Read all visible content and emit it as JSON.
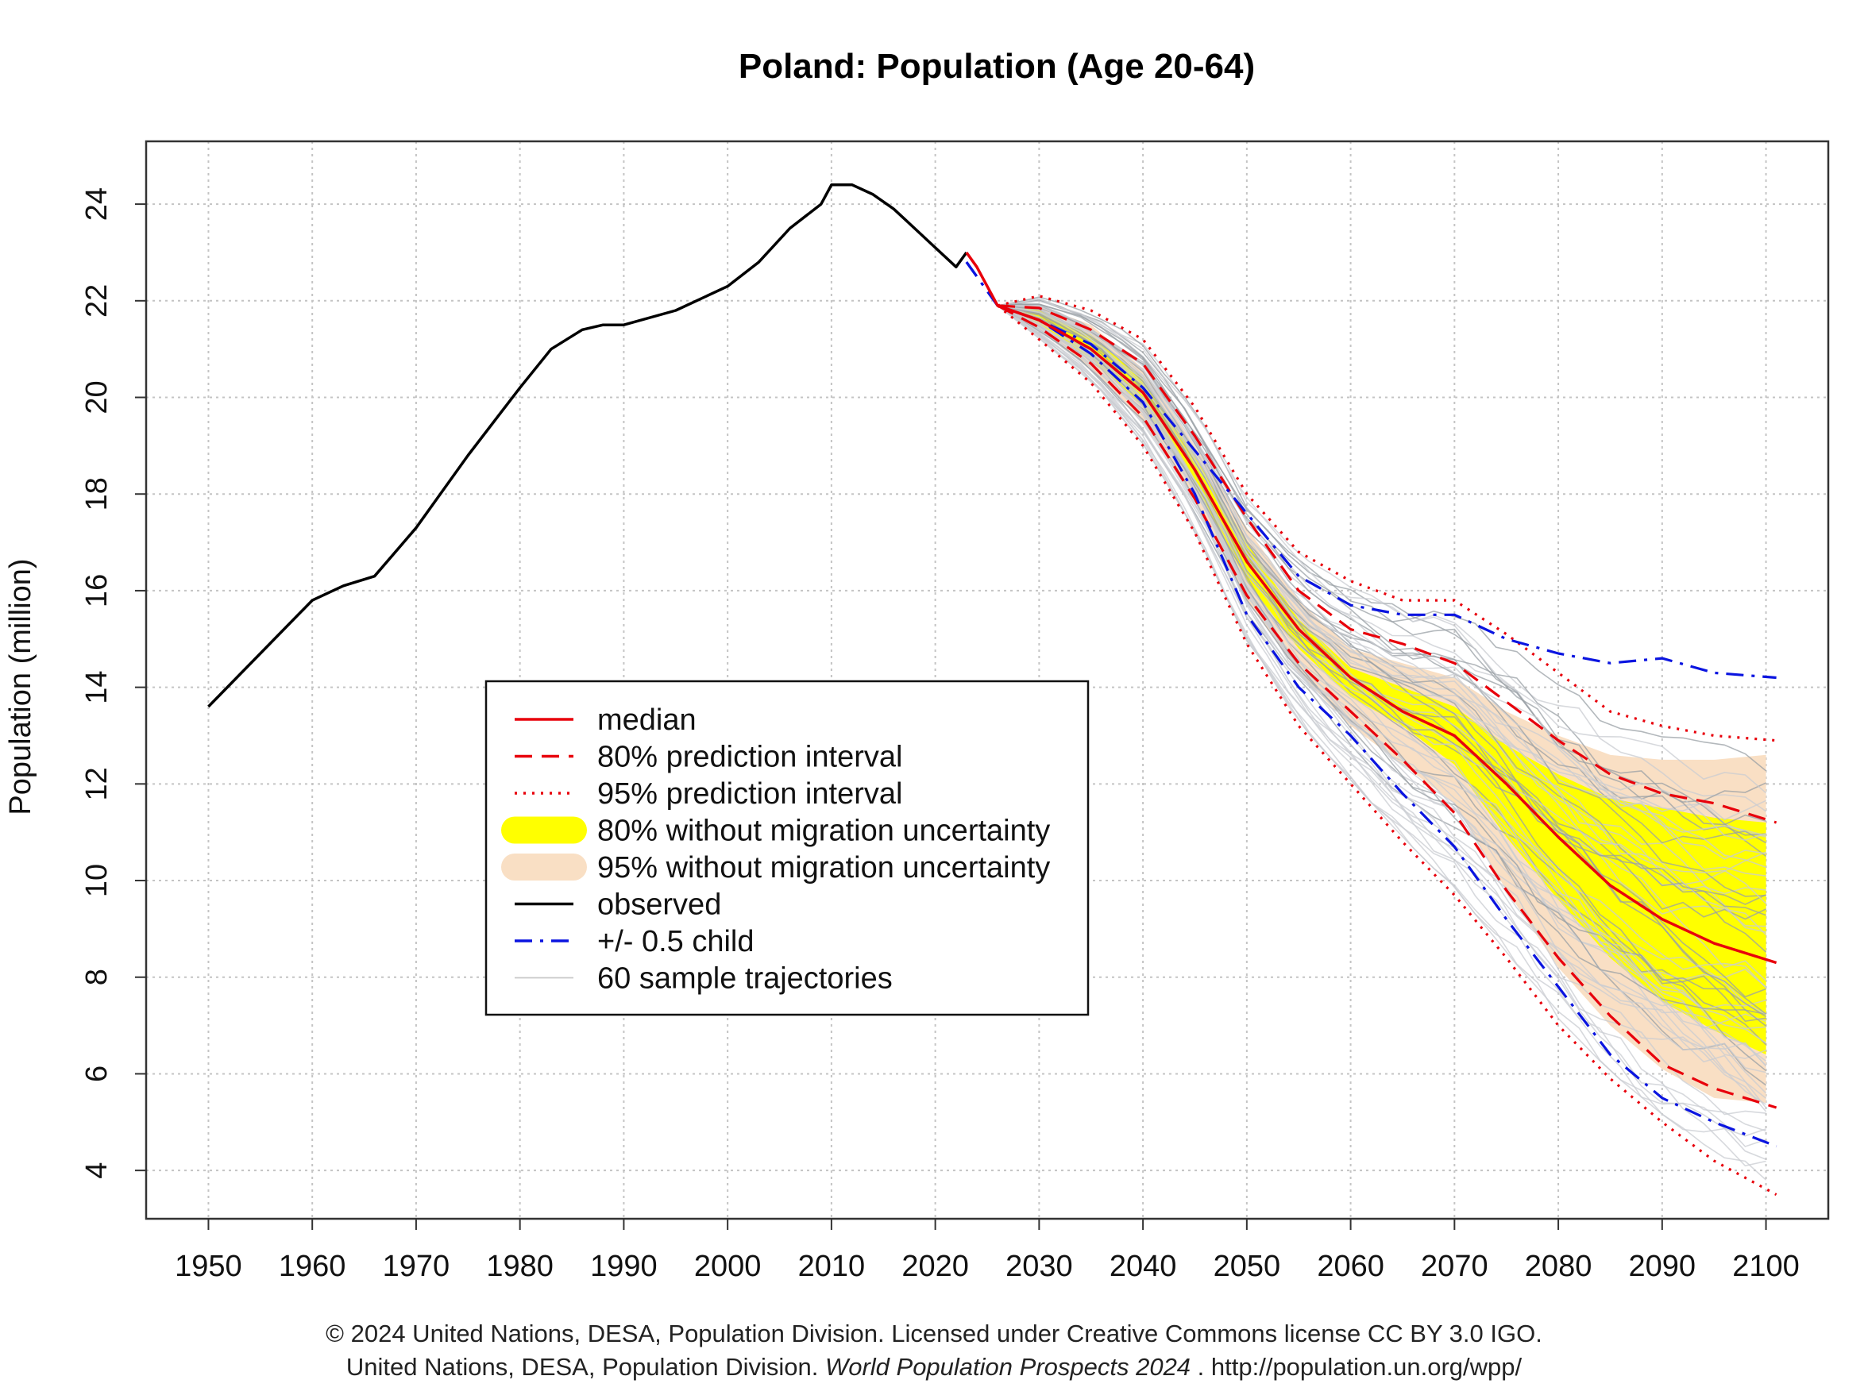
{
  "chart_data": {
    "type": "line",
    "title": "Poland: Population (Age 20-64)",
    "xlabel": "",
    "ylabel": "Population (million)",
    "xlim": [
      1944,
      2106
    ],
    "ylim": [
      3,
      25.3
    ],
    "xticks": [
      1950,
      1960,
      1970,
      1980,
      1990,
      2000,
      2010,
      2020,
      2030,
      2040,
      2050,
      2060,
      2070,
      2080,
      2090,
      2100
    ],
    "yticks": [
      4,
      6,
      8,
      10,
      12,
      14,
      16,
      18,
      20,
      22,
      24
    ],
    "grid": true,
    "legend_position": "center-left",
    "legend": [
      {
        "label": "median",
        "style": "solid",
        "color": "#e8000b"
      },
      {
        "label": "80% prediction interval",
        "style": "dashed",
        "color": "#e8000b"
      },
      {
        "label": "95% prediction interval",
        "style": "dotted",
        "color": "#e8000b"
      },
      {
        "label": "80% without migration uncertainty",
        "style": "band",
        "color": "#ffff00"
      },
      {
        "label": "95% without migration uncertainty",
        "style": "band",
        "color": "#f9dfc4"
      },
      {
        "label": "observed",
        "style": "solid",
        "color": "#000000"
      },
      {
        "label": "+/- 0.5 child",
        "style": "dashdot",
        "color": "#0a14e0"
      },
      {
        "label": "60 sample trajectories",
        "style": "thin",
        "color": "#c8c8c8"
      }
    ],
    "observed": {
      "x": [
        1950,
        1955,
        1960,
        1963,
        1966,
        1970,
        1975,
        1980,
        1983,
        1986,
        1988,
        1990,
        1995,
        2000,
        2003,
        2006,
        2009,
        2010,
        2012,
        2014,
        2016,
        2018,
        2020,
        2022,
        2023
      ],
      "y": [
        13.6,
        14.7,
        15.8,
        16.1,
        16.3,
        17.3,
        18.8,
        20.2,
        21.0,
        21.4,
        21.5,
        21.5,
        21.8,
        22.3,
        22.8,
        23.5,
        24.0,
        24.4,
        24.4,
        24.2,
        23.9,
        23.5,
        23.1,
        22.7,
        23.0
      ]
    },
    "median": {
      "x": [
        2023,
        2024,
        2026,
        2030,
        2035,
        2040,
        2045,
        2050,
        2055,
        2060,
        2065,
        2070,
        2075,
        2080,
        2085,
        2090,
        2095,
        2101
      ],
      "y": [
        23.0,
        22.7,
        21.9,
        21.6,
        21.0,
        20.1,
        18.5,
        16.6,
        15.2,
        14.2,
        13.5,
        13.0,
        12.0,
        10.9,
        9.9,
        9.2,
        8.7,
        8.3
      ]
    },
    "pi80_upper": {
      "x": [
        2026,
        2030,
        2035,
        2040,
        2045,
        2050,
        2055,
        2060,
        2065,
        2070,
        2075,
        2080,
        2085,
        2090,
        2095,
        2101
      ],
      "y": [
        21.9,
        21.85,
        21.4,
        20.7,
        19.2,
        17.5,
        16.0,
        15.2,
        14.9,
        14.5,
        13.7,
        12.9,
        12.2,
        11.8,
        11.6,
        11.2
      ]
    },
    "pi80_lower": {
      "x": [
        2026,
        2030,
        2035,
        2040,
        2045,
        2050,
        2055,
        2060,
        2065,
        2070,
        2075,
        2080,
        2085,
        2090,
        2095,
        2101
      ],
      "y": [
        21.9,
        21.45,
        20.7,
        19.6,
        17.9,
        15.9,
        14.5,
        13.5,
        12.5,
        11.4,
        9.8,
        8.4,
        7.2,
        6.2,
        5.7,
        5.3
      ]
    },
    "pi95_upper": {
      "x": [
        2026,
        2030,
        2035,
        2040,
        2045,
        2050,
        2055,
        2060,
        2065,
        2070,
        2075,
        2080,
        2085,
        2090,
        2095,
        2101
      ],
      "y": [
        21.9,
        22.1,
        21.8,
        21.2,
        19.8,
        18.0,
        16.8,
        16.2,
        15.8,
        15.8,
        15.1,
        14.3,
        13.5,
        13.2,
        13.0,
        12.9
      ]
    },
    "pi95_lower": {
      "x": [
        2026,
        2030,
        2035,
        2040,
        2045,
        2050,
        2055,
        2060,
        2065,
        2070,
        2075,
        2080,
        2085,
        2090,
        2095,
        2101
      ],
      "y": [
        21.9,
        21.2,
        20.3,
        19.0,
        17.2,
        14.9,
        13.2,
        12.0,
        10.8,
        9.7,
        8.4,
        7.0,
        5.9,
        5.0,
        4.2,
        3.5
      ]
    },
    "band80_nomig": {
      "x": [
        2026,
        2030,
        2035,
        2040,
        2045,
        2050,
        2055,
        2060,
        2065,
        2070,
        2075,
        2080,
        2085,
        2090,
        2095,
        2100
      ],
      "upper": [
        21.9,
        21.8,
        21.3,
        20.4,
        18.8,
        17.0,
        15.4,
        14.4,
        14.0,
        13.6,
        12.8,
        12.2,
        11.7,
        11.5,
        11.3,
        11.2
      ],
      "lower": [
        21.9,
        21.5,
        20.8,
        19.8,
        18.2,
        16.2,
        14.8,
        13.8,
        13.2,
        12.4,
        10.9,
        9.6,
        8.4,
        7.5,
        6.9,
        6.4
      ]
    },
    "band95_nomig": {
      "x": [
        2026,
        2030,
        2035,
        2040,
        2045,
        2050,
        2055,
        2060,
        2065,
        2070,
        2075,
        2080,
        2085,
        2090,
        2095,
        2100
      ],
      "upper": [
        21.9,
        21.9,
        21.5,
        20.6,
        19.0,
        17.3,
        15.8,
        14.8,
        14.5,
        14.2,
        13.5,
        13.0,
        12.6,
        12.5,
        12.5,
        12.6
      ],
      "lower": [
        21.9,
        21.4,
        20.6,
        19.5,
        17.9,
        15.8,
        14.3,
        13.2,
        12.4,
        11.6,
        9.8,
        8.2,
        7.0,
        6.1,
        5.5,
        5.4
      ]
    },
    "child_high": {
      "x": [
        2023,
        2026,
        2030,
        2035,
        2040,
        2045,
        2050,
        2055,
        2060,
        2065,
        2070,
        2075,
        2080,
        2085,
        2090,
        2095,
        2101
      ],
      "y": [
        22.8,
        21.9,
        21.6,
        21.1,
        20.2,
        18.9,
        17.6,
        16.3,
        15.7,
        15.5,
        15.5,
        15.0,
        14.7,
        14.5,
        14.6,
        14.3,
        14.2
      ]
    },
    "child_low": {
      "x": [
        2023,
        2026,
        2030,
        2035,
        2040,
        2045,
        2050,
        2055,
        2060,
        2065,
        2070,
        2075,
        2080,
        2085,
        2090,
        2095,
        2101
      ],
      "y": [
        22.8,
        21.9,
        21.6,
        20.9,
        19.9,
        18.0,
        15.5,
        14.0,
        13.0,
        11.8,
        10.7,
        9.2,
        7.8,
        6.4,
        5.5,
        5.0,
        4.5
      ]
    },
    "sample_trajectories_count": 60
  },
  "footer": {
    "line1": "© 2024 United Nations, DESA, Population Division. Licensed under Creative Commons license CC BY 3.0 IGO.",
    "line2_prefix": "United Nations, DESA, Population Division. ",
    "line2_italic": "World Population Prospects 2024",
    "line2_suffix": " . http://population.un.org/wpp/"
  }
}
